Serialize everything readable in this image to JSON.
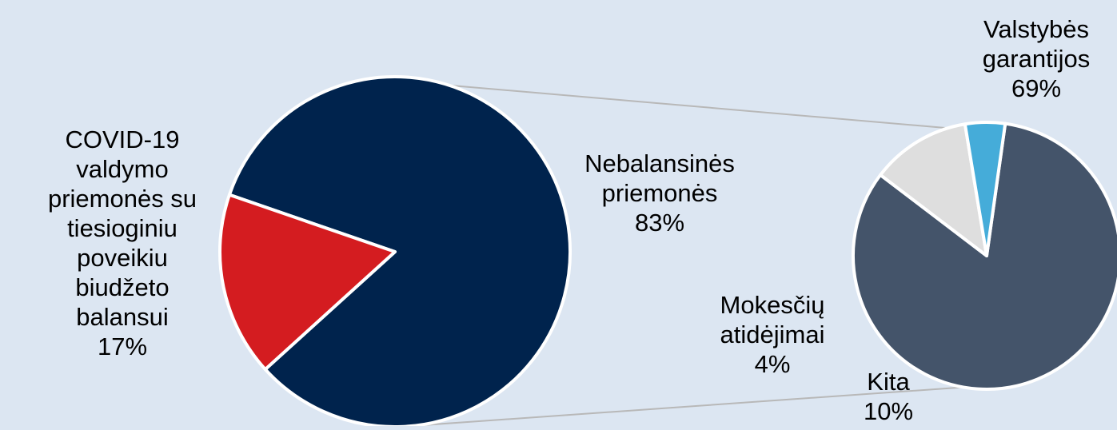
{
  "colors": {
    "background": "#dce6f2",
    "connector": "#b8b8b8",
    "slice_border": "#ffffff"
  },
  "chart_data": [
    {
      "type": "pie",
      "slices": [
        {
          "name": "Nebalansinės priemonės",
          "value": 83,
          "label_lines": [
            "Nebalansinės",
            "priemonės",
            "83%"
          ],
          "color": "#00234d"
        },
        {
          "name": "COVID-19 valdymo priemonės su tiesioginiu poveikiu biudžeto balansui",
          "value": 17,
          "label_lines": [
            "COVID-19",
            "valdymo",
            "priemonės su",
            "tiesioginiu",
            "poveikiu",
            "biudžeto",
            "balansui",
            "17%"
          ],
          "color": "#d41c20"
        }
      ]
    },
    {
      "type": "pie",
      "slices": [
        {
          "name": "Valstybės garantijos",
          "value": 69,
          "label_lines": [
            "Valstybės",
            "garantijos",
            "69%"
          ],
          "color": "#44546a"
        },
        {
          "name": "Kita",
          "value": 10,
          "label_lines": [
            "Kita",
            "10%"
          ],
          "color": "#dedede"
        },
        {
          "name": "Mokesčių atidėjimai",
          "value": 4,
          "label_lines": [
            "Mokesčių",
            "atidėjimai",
            "4%"
          ],
          "color": "#45acd9"
        }
      ]
    }
  ]
}
